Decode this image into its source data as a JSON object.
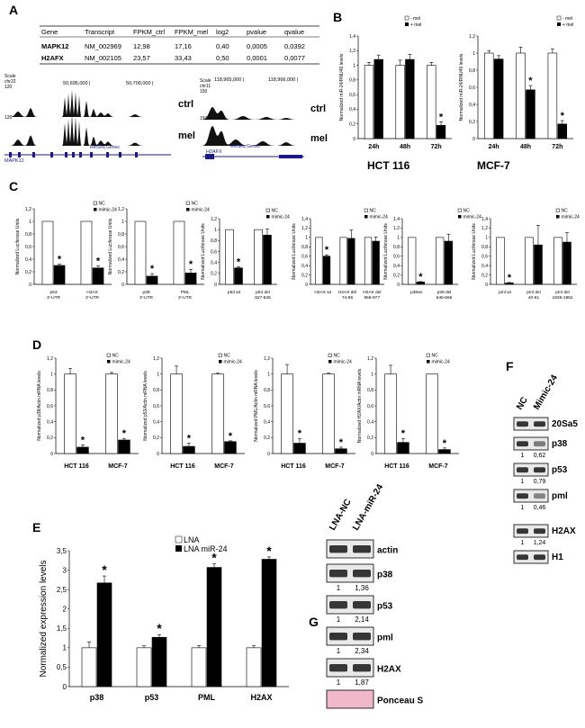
{
  "panel_letters": {
    "A": "A",
    "B": "B",
    "C": "C",
    "D": "D",
    "E": "E",
    "F": "F",
    "G": "G"
  },
  "table_a": {
    "headers": [
      "Gene",
      "Transcript",
      "FPKM_ctrl",
      "FPKM_mel",
      "log2",
      "pvalue",
      "qvalue"
    ],
    "rows": [
      [
        "MAPK12",
        "NM_002969",
        "12,98",
        "17,16",
        "0,40",
        "0,0005",
        "0,0392"
      ],
      [
        "H2AFX",
        "NM_002105",
        "23,57",
        "33,43",
        "0,50",
        "0,0001",
        "0,0077"
      ]
    ]
  },
  "tracks_a": {
    "left": {
      "scale": "Scale",
      "chrom": "chr22",
      "coord1": "50,695,000 |",
      "coord2": "50,700,000 |",
      "ymax": "120",
      "gene": "MAPK12",
      "refseq": "RefSeq Genes"
    },
    "right": {
      "scale": "Scale",
      "chrom": "chr11",
      "coord1": "118,965,000 |",
      "coord2": "118,966,000 |",
      "ymax": "150",
      "gene": "H2AFX",
      "refseq": "RefSeq Genes"
    },
    "ctrl": "ctrl",
    "mel": "mel"
  },
  "chart_data": [
    {
      "id": "B1",
      "type": "bar",
      "panel": "B",
      "title": "HCT 116",
      "ylabel": "Normalized miR-24/RNU49 levels",
      "categories": [
        "24h",
        "48h",
        "72h"
      ],
      "ylim": [
        0,
        1.4
      ],
      "yticks": [
        "0",
        "0,2",
        "0,4",
        "0,6",
        "0,8",
        "1",
        "1,2",
        "1,4"
      ],
      "series": [
        {
          "name": "- mel",
          "values": [
            1,
            1,
            1
          ],
          "err": [
            0.04,
            0.07,
            0.04
          ]
        },
        {
          "name": "+ mel",
          "values": [
            1.08,
            1.08,
            0.18
          ],
          "err": [
            0.06,
            0.07,
            0.05
          ]
        }
      ],
      "stars": [
        2
      ]
    },
    {
      "id": "B2",
      "type": "bar",
      "panel": "B",
      "title": "MCF-7",
      "ylabel": "Normalized miR-24/RNU49 levels",
      "categories": [
        "24h",
        "48h",
        "72h"
      ],
      "ylim": [
        0,
        1.2
      ],
      "yticks": [
        "0",
        "0,2",
        "0,4",
        "0,6",
        "0,8",
        "1",
        "1,2"
      ],
      "series": [
        {
          "name": "- mel",
          "values": [
            1,
            1,
            1
          ],
          "err": [
            0.03,
            0.07,
            0.05
          ]
        },
        {
          "name": "+ mel",
          "values": [
            0.93,
            0.57,
            0.17
          ],
          "err": [
            0.04,
            0.05,
            0.04
          ]
        }
      ],
      "stars": [
        1,
        2
      ]
    },
    {
      "id": "C1",
      "type": "bar",
      "panel": "C",
      "ylabel": "Normalized Luciferase Units",
      "categories": [
        "p53 3'-UTR",
        "H2AX 3'-UTR"
      ],
      "ylim": [
        0,
        1.2
      ],
      "yticks": [
        "0",
        "0,2",
        "0,4",
        "0,6",
        "0,8",
        "1",
        "1,2"
      ],
      "series": [
        {
          "name": "NC",
          "values": [
            1,
            1
          ],
          "err": [
            0,
            0
          ]
        },
        {
          "name": "mimic-24",
          "values": [
            0.3,
            0.26
          ],
          "err": [
            0.02,
            0.03
          ]
        }
      ],
      "stars": [
        0,
        1
      ]
    },
    {
      "id": "C2",
      "type": "bar",
      "panel": "C",
      "ylabel": "Normalized Luciferase Units",
      "categories": [
        "p38 3'-UTR",
        "PML 3'-UTR"
      ],
      "ylim": [
        0,
        1.2
      ],
      "yticks": [
        "0",
        "0,2",
        "0,4",
        "0,6",
        "0,8",
        "1",
        "1,2"
      ],
      "series": [
        {
          "name": "NC",
          "values": [
            1,
            1
          ],
          "err": [
            0,
            0
          ]
        },
        {
          "name": "mimic-24",
          "values": [
            0.13,
            0.18
          ],
          "err": [
            0.04,
            0.06
          ]
        }
      ],
      "stars": [
        0,
        1
      ]
    },
    {
      "id": "C3",
      "type": "bar",
      "panel": "C",
      "ylabel": "Normalized Luciferase Units",
      "categories": [
        "p53 wt",
        "p53 del 827-845"
      ],
      "ylim": [
        0,
        1.2
      ],
      "yticks": [
        "0",
        "0,2",
        "0,4",
        "0,6",
        "0,8",
        "1",
        "1,2"
      ],
      "series": [
        {
          "name": "NC",
          "values": [
            1,
            1
          ],
          "err": [
            0,
            0
          ]
        },
        {
          "name": "mimic-24",
          "values": [
            0.3,
            0.9
          ],
          "err": [
            0.02,
            0.11
          ]
        }
      ],
      "stars": [
        0
      ]
    },
    {
      "id": "C4",
      "type": "bar",
      "panel": "C",
      "ylabel": "Normalized Luciferase Units",
      "categories": [
        "H2AX wt",
        "H2AX del 74-95",
        "H2AX del 956-977"
      ],
      "ylim": [
        0,
        1.4
      ],
      "yticks": [
        "0",
        "0,2",
        "0,4",
        "0,6",
        "0,8",
        "1",
        "1,2",
        "1,4"
      ],
      "series": [
        {
          "name": "NC",
          "values": [
            1,
            1,
            1
          ],
          "err": [
            0,
            0,
            0
          ]
        },
        {
          "name": "mimic-24",
          "values": [
            0.6,
            0.98,
            0.92
          ],
          "err": [
            0.03,
            0.18,
            0.09
          ]
        }
      ],
      "stars": [
        0
      ]
    },
    {
      "id": "C5",
      "type": "bar",
      "panel": "C",
      "ylabel": "Normalized Luciferase Units",
      "categories": [
        "p38wt",
        "p38 del 645-666"
      ],
      "ylim": [
        0,
        1.4
      ],
      "yticks": [
        "0",
        "0,2",
        "0,4",
        "0,6",
        "0,8",
        "1",
        "1,2",
        "1,4"
      ],
      "series": [
        {
          "name": "NC",
          "values": [
            1,
            1
          ],
          "err": [
            0,
            0
          ]
        },
        {
          "name": "mimic-24",
          "values": [
            0.05,
            0.92
          ],
          "err": [
            0.01,
            0.15
          ]
        }
      ],
      "stars": [
        0
      ]
    },
    {
      "id": "C6",
      "type": "bar",
      "panel": "C",
      "ylabel": "Normalized Luciferase Units",
      "categories": [
        "pml wt",
        "pml del 40-61",
        "pml del 1928-1952"
      ],
      "ylim": [
        0,
        1.4
      ],
      "yticks": [
        "0",
        "0,2",
        "0,4",
        "0,6",
        "0,8",
        "1",
        "1,2",
        "1,4"
      ],
      "series": [
        {
          "name": "NC",
          "values": [
            1,
            1,
            1
          ],
          "err": [
            0,
            0,
            0
          ]
        },
        {
          "name": "mimic-24",
          "values": [
            0.03,
            0.84,
            0.9
          ],
          "err": [
            0.01,
            0.42,
            0.2
          ]
        }
      ],
      "stars": [
        0
      ]
    },
    {
      "id": "D1",
      "type": "bar",
      "panel": "D",
      "ylabel": "Normalized p38/Actin mRNA levels",
      "categories": [
        "HCT 116",
        "MCF-7"
      ],
      "ylim": [
        0,
        1.2
      ],
      "yticks": [
        "0",
        "0,2",
        "0,4",
        "0,6",
        "0,8",
        "1",
        "1,2"
      ],
      "series": [
        {
          "name": "NC",
          "values": [
            1,
            1
          ],
          "err": [
            0.07,
            0.02
          ]
        },
        {
          "name": "mimic-24",
          "values": [
            0.08,
            0.17
          ],
          "err": [
            0.03,
            0.02
          ]
        }
      ],
      "stars": [
        0,
        1
      ]
    },
    {
      "id": "D2",
      "type": "bar",
      "panel": "D",
      "ylabel": "Normalized p53/Actin mRNA levels",
      "categories": [
        "HCT 116",
        "MCF-7"
      ],
      "ylim": [
        0,
        1.2
      ],
      "yticks": [
        "0",
        "0,2",
        "0,4",
        "0,6",
        "0,8",
        "1",
        "1,2"
      ],
      "series": [
        {
          "name": "NC",
          "values": [
            1,
            1
          ],
          "err": [
            0.1,
            0.01
          ]
        },
        {
          "name": "mimic-24",
          "values": [
            0.09,
            0.15
          ],
          "err": [
            0.04,
            0.01
          ]
        }
      ],
      "stars": [
        0,
        1
      ]
    },
    {
      "id": "D3",
      "type": "bar",
      "panel": "D",
      "ylabel": "Normalized PML/Actin mRNA levels",
      "categories": [
        "HCT 116",
        "MCF-7"
      ],
      "ylim": [
        0,
        1.2
      ],
      "yticks": [
        "0",
        "0,2",
        "0,4",
        "0,6",
        "0,8",
        "1",
        "1,2"
      ],
      "series": [
        {
          "name": "NC",
          "values": [
            1,
            1
          ],
          "err": [
            0.12,
            0.01
          ]
        },
        {
          "name": "mimic-24",
          "values": [
            0.13,
            0.06
          ],
          "err": [
            0.06,
            0.02
          ]
        }
      ],
      "stars": [
        0,
        1
      ]
    },
    {
      "id": "D4",
      "type": "bar",
      "panel": "D",
      "ylabel": "Normalized H2AX/Actin mRNA levels",
      "categories": [
        "HCT 116",
        "MCF-7"
      ],
      "ylim": [
        0,
        1.2
      ],
      "yticks": [
        "0",
        "0,2",
        "0,4",
        "0,6",
        "0,8",
        "1",
        "1,2"
      ],
      "series": [
        {
          "name": "NC",
          "values": [
            1,
            1
          ],
          "err": [
            0.11,
            0
          ],
          "blank": []
        },
        {
          "name": "mimic-24",
          "values": [
            0.14,
            0.05
          ],
          "err": [
            0.05,
            0.02
          ]
        }
      ],
      "stars": [
        0,
        1
      ]
    },
    {
      "id": "E1",
      "type": "bar",
      "panel": "E",
      "ylabel": "Normalized  expression levels",
      "categories": [
        "p38",
        "p53",
        "PML",
        "H2AX"
      ],
      "ylim": [
        0,
        3.5
      ],
      "yticks": [
        "0",
        "0,5",
        "1",
        "1,5",
        "2",
        "2,5",
        "3",
        "3,5"
      ],
      "series": [
        {
          "name": "LNA",
          "values": [
            1,
            1,
            1,
            1
          ],
          "err": [
            0.15,
            0.05,
            0.06,
            0.05
          ]
        },
        {
          "name": "LNA miR-24",
          "values": [
            2.67,
            1.27,
            3.07,
            3.28
          ],
          "err": [
            0.18,
            0.07,
            0.09,
            0.06
          ]
        }
      ],
      "stars": [
        0,
        1,
        2,
        3
      ]
    }
  ],
  "western_f": {
    "columns": [
      "NC",
      "Mimic-24"
    ],
    "rows": [
      {
        "label": "20Sa5",
        "values": [
          "",
          ""
        ]
      },
      {
        "label": "p38",
        "values": [
          "1",
          "0,62"
        ]
      },
      {
        "label": "p53",
        "values": [
          "1",
          "0,79"
        ]
      },
      {
        "label": "pml",
        "values": [
          "1",
          "0,46"
        ]
      },
      {
        "label": "H2AX",
        "values": [
          "1",
          "1,24"
        ]
      },
      {
        "label": "H1",
        "values": [
          "",
          ""
        ]
      }
    ]
  },
  "western_g": {
    "columns": [
      "LNA-NC",
      "LNA-miR-24"
    ],
    "rows": [
      {
        "label": "actin",
        "values": [
          "",
          ""
        ]
      },
      {
        "label": "p38",
        "values": [
          "1",
          "1,36"
        ]
      },
      {
        "label": "p53",
        "values": [
          "1",
          "2,14"
        ]
      },
      {
        "label": "pml",
        "values": [
          "1",
          "2,34"
        ]
      },
      {
        "label": "H2AX",
        "values": [
          "1",
          "1,87"
        ]
      },
      {
        "label": "Ponceau S",
        "values": [
          "",
          ""
        ]
      }
    ]
  },
  "colors": {
    "open": "#ffffff",
    "filled": "#000000",
    "track": "#111111",
    "refseq": "#1a1a8c",
    "ponceau": "#f0b8c8"
  }
}
